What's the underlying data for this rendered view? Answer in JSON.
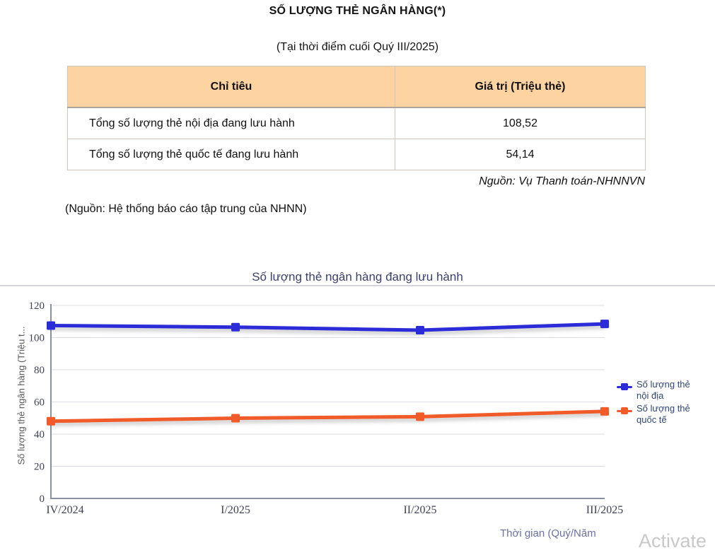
{
  "page": {
    "title": "SỐ LƯỢNG THẺ NGÂN HÀNG(*)",
    "subtitle": "(Tại thời điểm cuối Quý III/2025)",
    "source_right": "Nguồn: Vụ Thanh toán-NHNNVN",
    "source_left": "(Nguồn: Hệ thống báo cáo tập trung của NHNN)",
    "watermark": "Activate"
  },
  "table": {
    "header_bg": "#FCD3A1",
    "headers": [
      "Chỉ tiêu",
      "Giá trị (Triệu thẻ)"
    ],
    "rows": [
      {
        "label": "Tổng số lượng thẻ nội địa đang lưu hành",
        "value": "108,52"
      },
      {
        "label": "Tổng số lượng thẻ quốc tế đang lưu hành",
        "value": "54,14"
      }
    ]
  },
  "chart_data": {
    "type": "line",
    "title": "Số lượng thẻ ngân hàng đang lưu hành",
    "categories": [
      "IV/2024",
      "I/2025",
      "II/2025",
      "III/2025"
    ],
    "series": [
      {
        "name": "Số lượng thẻ nội địa",
        "color": "#2B2BD8",
        "values": [
          107.5,
          106.5,
          104.6,
          108.52
        ]
      },
      {
        "name": "Số lượng thẻ quốc tế",
        "color": "#F15A29",
        "values": [
          48.0,
          49.9,
          50.8,
          54.14
        ]
      }
    ],
    "ylabel": "Số lượng thẻ ngân hàng (Triệu t...",
    "xlabel": "Thời gian (Quý/Năm",
    "ylim": [
      0,
      120
    ],
    "yticks": [
      0,
      20,
      40,
      60,
      80,
      100,
      120
    ],
    "grid": true,
    "legend_position": "right",
    "axis_color": "#8A8FA3",
    "grid_color": "#DCDCE4",
    "tick_color": "#3F4156"
  }
}
